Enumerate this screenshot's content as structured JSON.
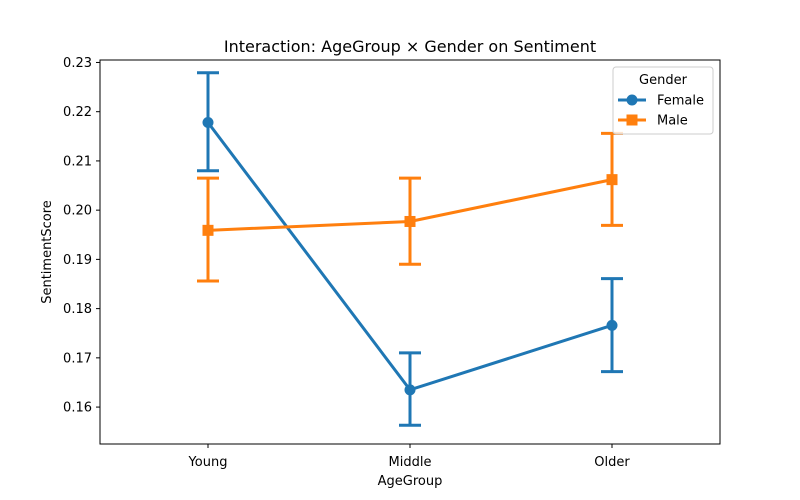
{
  "chart_data": {
    "type": "line",
    "title": "Interaction: AgeGroup × Gender on Sentiment",
    "xlabel": "AgeGroup",
    "ylabel": "SentimentScore",
    "categories": [
      "Young",
      "Middle",
      "Older"
    ],
    "ylim": [
      0.1525,
      0.2305
    ],
    "yticks": [
      0.16,
      0.17,
      0.18,
      0.19,
      0.2,
      0.21,
      0.22,
      0.23
    ],
    "ytick_labels": [
      "0.16",
      "0.17",
      "0.18",
      "0.19",
      "0.20",
      "0.21",
      "0.22",
      "0.23"
    ],
    "legend": {
      "title": "Gender",
      "position": "top-right"
    },
    "grid": false,
    "series": [
      {
        "name": "Female",
        "color": "#1f77b4",
        "marker": "circle",
        "values": [
          0.2178,
          0.1635,
          0.1766
        ],
        "ci_low": [
          0.208,
          0.1563,
          0.1672
        ],
        "ci_high": [
          0.2279,
          0.171,
          0.1861
        ]
      },
      {
        "name": "Male",
        "color": "#ff7f0e",
        "marker": "square",
        "values": [
          0.1959,
          0.1977,
          0.2062
        ],
        "ci_low": [
          0.1856,
          0.189,
          0.1969
        ],
        "ci_high": [
          0.2065,
          0.2065,
          0.2156
        ]
      }
    ]
  }
}
